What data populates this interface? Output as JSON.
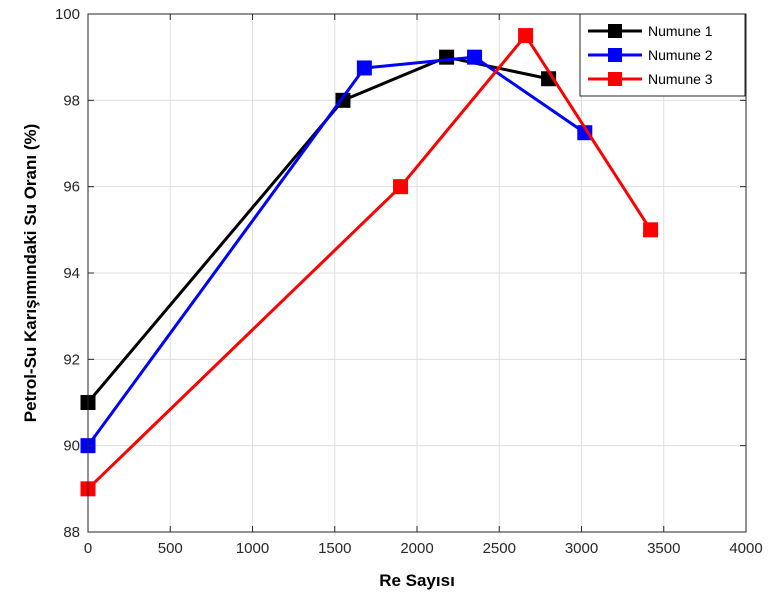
{
  "chart_data": {
    "type": "line",
    "xlabel": "Re Sayısı",
    "ylabel": "Petrol-Su Karışımındaki Su Oranı (%)",
    "xlim": [
      0,
      4000
    ],
    "ylim": [
      88,
      100
    ],
    "xticks": [
      0,
      500,
      1000,
      1500,
      2000,
      2500,
      3000,
      3500,
      4000
    ],
    "yticks": [
      88,
      90,
      92,
      94,
      96,
      98,
      100
    ],
    "grid": true,
    "legend_position": "top-right",
    "series": [
      {
        "name": "Numune 1",
        "color": "#000000",
        "marker": "square",
        "x": [
          0,
          1550,
          2180,
          2800
        ],
        "y": [
          91,
          98,
          99,
          98.5
        ]
      },
      {
        "name": "Numune 2",
        "color": "#0000ff",
        "marker": "square",
        "x": [
          0,
          1680,
          2350,
          3020
        ],
        "y": [
          90,
          98.75,
          99,
          97.25
        ]
      },
      {
        "name": "Numune 3",
        "color": "#ff0000",
        "marker": "square",
        "x": [
          0,
          1900,
          2660,
          3420
        ],
        "y": [
          89,
          96,
          99.5,
          95
        ]
      }
    ]
  }
}
